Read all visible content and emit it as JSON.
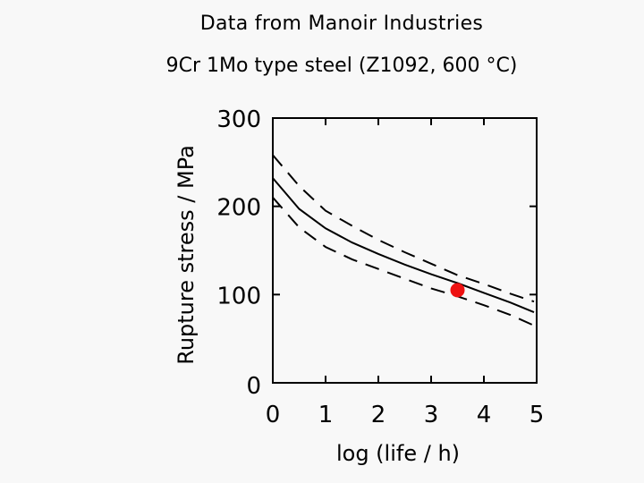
{
  "header": {
    "title": "Data from Manoir Industries",
    "subtitle": "9Cr 1Mo type steel (Z1092, 600 °C)"
  },
  "chart_data": {
    "type": "line",
    "xlabel": "log (life / h)",
    "ylabel": "Rupture stress / MPa",
    "xlim": [
      0,
      5
    ],
    "ylim": [
      0,
      300
    ],
    "x_ticks": [
      "0",
      "1",
      "2",
      "3",
      "4",
      "5"
    ],
    "y_ticks": [
      "0",
      "100",
      "200",
      "300"
    ],
    "grid": false,
    "series": [
      {
        "style": "solid",
        "color": "#000000",
        "x": [
          0,
          0.5,
          1,
          1.5,
          2,
          2.5,
          3,
          3.5,
          4,
          4.5,
          4.95
        ],
        "y": [
          232,
          197,
          175,
          159,
          146,
          134,
          123,
          113,
          102,
          91,
          80
        ]
      },
      {
        "style": "dashed",
        "color": "#000000",
        "x": [
          0,
          0.5,
          1,
          1.5,
          2,
          2.5,
          3,
          3.5,
          4,
          4.5,
          4.95
        ],
        "y": [
          258,
          223,
          195,
          178,
          162,
          148,
          135,
          122,
          112,
          101,
          92
        ]
      },
      {
        "style": "dashed",
        "color": "#000000",
        "x": [
          0,
          0.5,
          1,
          1.5,
          2,
          2.5,
          3,
          3.5,
          4,
          4.5,
          4.95
        ],
        "y": [
          210,
          176,
          154,
          140,
          129,
          118,
          107,
          98,
          88,
          77,
          65
        ]
      }
    ],
    "points": [
      {
        "x": 3.5,
        "y": 105,
        "color": "#ee1111"
      }
    ]
  }
}
